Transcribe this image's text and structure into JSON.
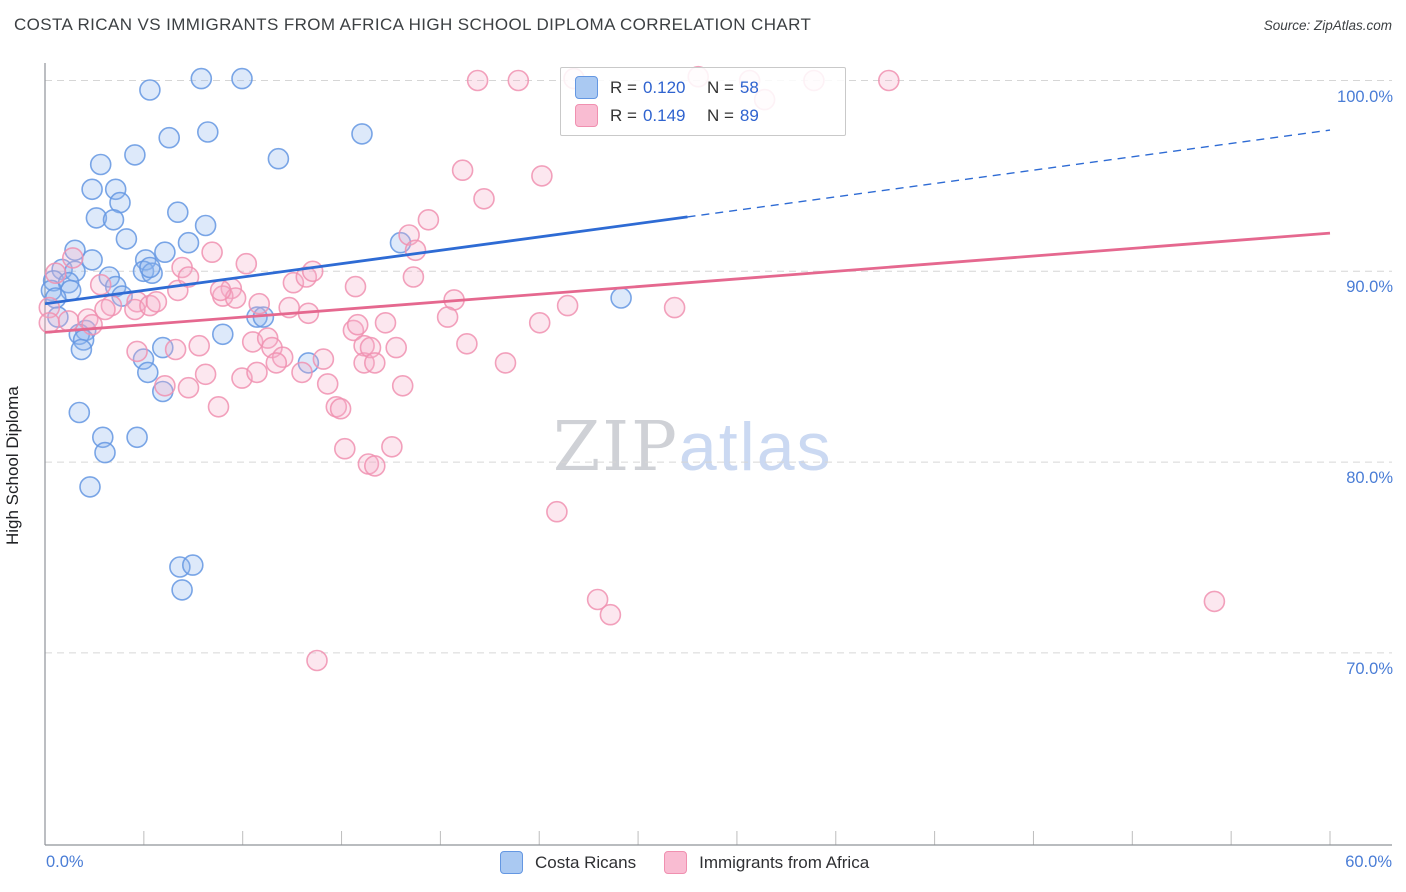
{
  "header": {
    "title": "COSTA RICAN VS IMMIGRANTS FROM AFRICA HIGH SCHOOL DIPLOMA CORRELATION CHART",
    "source": "Source: ZipAtlas.com"
  },
  "watermark": {
    "zip": "ZIP",
    "atlas": "atlas"
  },
  "axes": {
    "y_label": "High School Diploma",
    "y_ticks": [
      "100.0%",
      "90.0%",
      "80.0%",
      "70.0%"
    ],
    "x_tick_left": "0.0%",
    "x_tick_right": "60.0%"
  },
  "legend_box": {
    "rows": [
      {
        "series": "Costa Ricans",
        "r_label": "R =",
        "r_value": "0.120",
        "n_label": "N =",
        "n_value": "58"
      },
      {
        "series": "Immigrants from Africa",
        "r_label": "R =",
        "r_value": "0.149",
        "n_label": "N =",
        "n_value": "89"
      }
    ]
  },
  "bottom_legend": [
    {
      "label": "Costa Ricans"
    },
    {
      "label": "Immigrants from Africa"
    }
  ],
  "colors": {
    "blue_point_stroke": "#6497e2",
    "blue_point_fill": "#8fb6ee",
    "pink_point_stroke": "#f090b0",
    "pink_point_fill": "#f6aec9",
    "blue_trend": "#2e6bd4",
    "pink_trend": "#e5688f",
    "gridline": "#d6d6d6",
    "spine": "#8f9399",
    "tick": "#bdbdbd",
    "axis_label_blue": "#4a7dd6"
  },
  "chart_data": {
    "type": "scatter",
    "title": "COSTA RICAN VS IMMIGRANTS FROM AFRICA HIGH SCHOOL DIPLOMA CORRELATION CHART",
    "xlabel": "",
    "ylabel": "High School Diploma",
    "xlim": [
      0,
      60
    ],
    "ylim": [
      59.9,
      101.2
    ],
    "x_axis_labels": [
      "0.0%",
      "60.0%"
    ],
    "y_gridlines": [
      100,
      90,
      80,
      70
    ],
    "grid": "horizontal-dashed",
    "legend_position": "top-center-box and below-axis",
    "series": [
      {
        "name": "Costa Ricans",
        "R": 0.12,
        "N": 58,
        "points": [
          [
            7.3,
            100.1
          ],
          [
            9.2,
            100.1
          ],
          [
            4.9,
            99.5
          ],
          [
            5.8,
            97.0
          ],
          [
            7.6,
            97.3
          ],
          [
            14.8,
            97.2
          ],
          [
            4.2,
            96.1
          ],
          [
            2.6,
            95.6
          ],
          [
            10.9,
            95.9
          ],
          [
            2.2,
            94.3
          ],
          [
            3.3,
            94.3
          ],
          [
            3.5,
            93.6
          ],
          [
            2.4,
            92.8
          ],
          [
            3.2,
            92.7
          ],
          [
            6.2,
            93.1
          ],
          [
            3.8,
            91.7
          ],
          [
            7.5,
            92.4
          ],
          [
            6.7,
            91.5
          ],
          [
            5.6,
            91.0
          ],
          [
            1.4,
            91.1
          ],
          [
            4.7,
            90.6
          ],
          [
            4.6,
            90.0
          ],
          [
            5.0,
            89.9
          ],
          [
            16.6,
            91.5
          ],
          [
            26.9,
            88.6
          ],
          [
            2.2,
            90.6
          ],
          [
            0.8,
            90.1
          ],
          [
            1.4,
            90.0
          ],
          [
            0.4,
            89.5
          ],
          [
            1.1,
            89.4
          ],
          [
            0.3,
            89.0
          ],
          [
            1.2,
            89.0
          ],
          [
            0.5,
            88.6
          ],
          [
            0.6,
            87.6
          ],
          [
            3.0,
            89.7
          ],
          [
            3.3,
            89.2
          ],
          [
            3.6,
            88.7
          ],
          [
            4.9,
            90.2
          ],
          [
            9.9,
            87.6
          ],
          [
            10.2,
            87.6
          ],
          [
            1.9,
            86.9
          ],
          [
            1.6,
            86.7
          ],
          [
            1.8,
            86.4
          ],
          [
            1.7,
            85.9
          ],
          [
            8.3,
            86.7
          ],
          [
            5.5,
            86.0
          ],
          [
            4.6,
            85.4
          ],
          [
            4.8,
            84.7
          ],
          [
            5.5,
            83.7
          ],
          [
            12.3,
            85.2
          ],
          [
            1.6,
            82.6
          ],
          [
            2.7,
            81.3
          ],
          [
            2.8,
            80.5
          ],
          [
            4.3,
            81.3
          ],
          [
            2.1,
            78.7
          ],
          [
            6.3,
            74.5
          ],
          [
            6.9,
            74.6
          ],
          [
            6.4,
            73.3
          ]
        ]
      },
      {
        "name": "Immigrants from Africa",
        "R": 0.149,
        "N": 89,
        "points": [
          [
            20.2,
            100.0
          ],
          [
            22.1,
            100.0
          ],
          [
            24.7,
            100.1
          ],
          [
            30.5,
            100.2
          ],
          [
            32.9,
            100.0
          ],
          [
            35.9,
            100.0
          ],
          [
            39.4,
            100.0
          ],
          [
            33.6,
            99.0
          ],
          [
            19.5,
            95.3
          ],
          [
            23.2,
            95.0
          ],
          [
            20.5,
            93.8
          ],
          [
            17.9,
            92.7
          ],
          [
            17.0,
            91.9
          ],
          [
            17.3,
            91.1
          ],
          [
            17.2,
            89.7
          ],
          [
            19.1,
            88.5
          ],
          [
            18.8,
            87.6
          ],
          [
            15.9,
            87.3
          ],
          [
            24.4,
            88.2
          ],
          [
            29.4,
            88.1
          ],
          [
            23.1,
            87.3
          ],
          [
            19.7,
            86.2
          ],
          [
            16.4,
            86.0
          ],
          [
            21.5,
            85.2
          ],
          [
            16.7,
            84.0
          ],
          [
            4.3,
            85.8
          ],
          [
            6.1,
            85.9
          ],
          [
            7.2,
            86.1
          ],
          [
            5.6,
            84.0
          ],
          [
            6.7,
            83.9
          ],
          [
            7.5,
            84.6
          ],
          [
            8.1,
            82.9
          ],
          [
            9.2,
            84.4
          ],
          [
            9.9,
            84.7
          ],
          [
            9.7,
            86.3
          ],
          [
            10.4,
            86.5
          ],
          [
            10.6,
            86.0
          ],
          [
            11.1,
            85.5
          ],
          [
            10.8,
            85.2
          ],
          [
            12.0,
            84.7
          ],
          [
            13.0,
            85.4
          ],
          [
            13.2,
            84.1
          ],
          [
            13.6,
            82.9
          ],
          [
            13.8,
            82.8
          ],
          [
            14.0,
            80.7
          ],
          [
            15.1,
            79.9
          ],
          [
            14.4,
            86.9
          ],
          [
            14.9,
            86.1
          ],
          [
            14.9,
            85.2
          ],
          [
            15.2,
            86.0
          ],
          [
            15.4,
            85.2
          ],
          [
            16.2,
            80.8
          ],
          [
            15.4,
            79.8
          ],
          [
            12.7,
            69.6
          ],
          [
            23.9,
            77.4
          ],
          [
            25.8,
            72.8
          ],
          [
            26.4,
            72.0
          ],
          [
            54.6,
            72.7
          ],
          [
            0.5,
            89.9
          ],
          [
            1.3,
            90.7
          ],
          [
            0.2,
            88.1
          ],
          [
            0.2,
            87.3
          ],
          [
            1.1,
            87.4
          ],
          [
            2.0,
            87.5
          ],
          [
            2.2,
            87.2
          ],
          [
            2.6,
            89.3
          ],
          [
            3.1,
            88.2
          ],
          [
            2.8,
            88.0
          ],
          [
            4.3,
            88.4
          ],
          [
            4.2,
            88.0
          ],
          [
            4.9,
            88.2
          ],
          [
            5.2,
            88.4
          ],
          [
            6.2,
            89.0
          ],
          [
            6.4,
            90.2
          ],
          [
            6.7,
            89.7
          ],
          [
            7.8,
            91.0
          ],
          [
            9.4,
            90.4
          ],
          [
            8.7,
            89.1
          ],
          [
            8.3,
            88.7
          ],
          [
            8.9,
            88.6
          ],
          [
            11.6,
            89.4
          ],
          [
            12.2,
            89.7
          ],
          [
            12.5,
            90.0
          ],
          [
            14.5,
            89.2
          ],
          [
            11.4,
            88.1
          ],
          [
            12.3,
            87.8
          ],
          [
            14.6,
            87.2
          ],
          [
            8.2,
            89.0
          ],
          [
            10.0,
            88.3
          ]
        ]
      }
    ],
    "trend_lines": [
      {
        "series": "Costa Ricans",
        "x0": 0,
        "y0": 88.3,
        "x1": 60,
        "y1": 97.4,
        "solid_until_x": 30,
        "style": "solid-then-dashed"
      },
      {
        "series": "Immigrants from Africa",
        "x0": 0,
        "y0": 86.8,
        "x1": 60,
        "y1": 92.0,
        "style": "solid"
      }
    ]
  }
}
